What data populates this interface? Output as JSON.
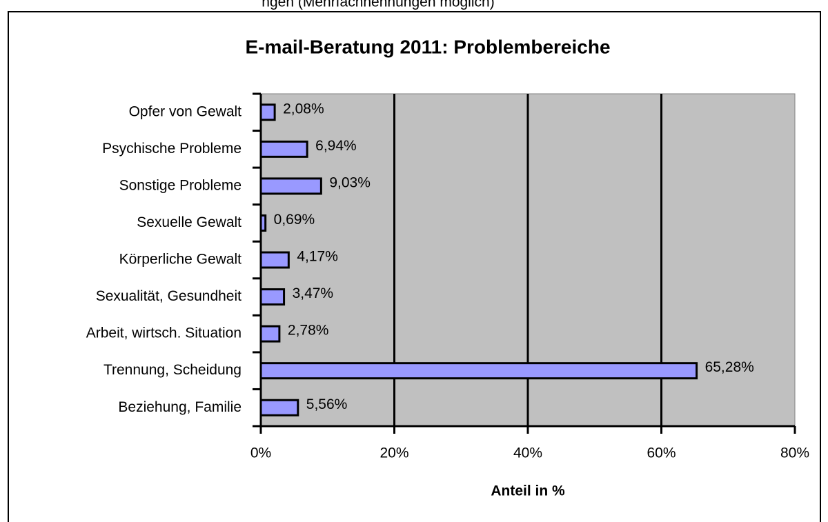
{
  "caption": "ngen (Mehrfachnennungen möglich)",
  "chart_data": {
    "type": "hbar",
    "title": "E-mail-Beratung 2011: Problembereiche",
    "x_label": "Anteil in %",
    "categories": [
      "Opfer von Gewalt",
      "Psychische Probleme",
      "Sonstige Probleme",
      "Sexuelle Gewalt",
      "Körperliche Gewalt",
      "Sexualität, Gesundheit",
      "Arbeit, wirtsch. Situation",
      "Trennung, Scheidung",
      "Beziehung, Familie"
    ],
    "values": [
      2.08,
      6.94,
      9.03,
      0.69,
      4.17,
      3.47,
      2.78,
      65.28,
      5.56
    ],
    "value_labels": [
      "2,08%",
      "6,94%",
      "9,03%",
      "0,69%",
      "4,17%",
      "3,47%",
      "2,78%",
      "65,28%",
      "5,56%"
    ],
    "color": "#9999ff",
    "plot_background": "#c0c0c0",
    "xlim": [
      0,
      80
    ],
    "xticks": [
      {
        "value": 0,
        "label": "0%"
      },
      {
        "value": 20,
        "label": "20%"
      },
      {
        "value": 40,
        "label": "40%"
      },
      {
        "value": 60,
        "label": "60%"
      },
      {
        "value": 80,
        "label": "80%"
      }
    ],
    "grid": true
  }
}
